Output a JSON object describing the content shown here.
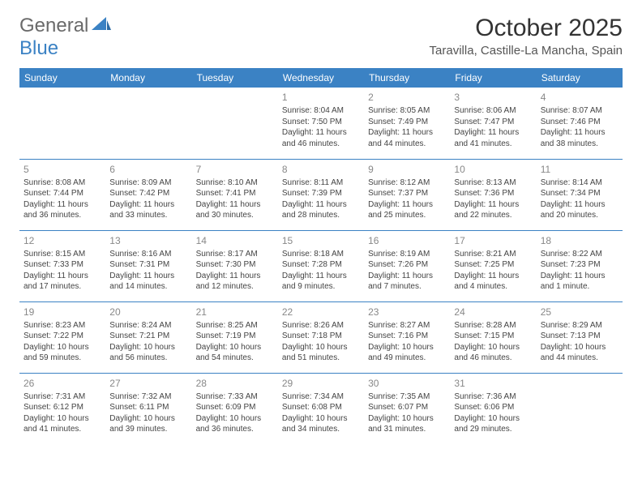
{
  "logo": {
    "text1": "General",
    "text2": "Blue"
  },
  "title": "October 2025",
  "subtitle": "Taravilla, Castille-La Mancha, Spain",
  "colors": {
    "header_bg": "#3b82c4",
    "header_text": "#ffffff",
    "border": "#3b82c4",
    "daynum": "#888888",
    "body_text": "#444444",
    "logo_gray": "#6a6a6a",
    "logo_blue": "#3b82c4"
  },
  "day_headers": [
    "Sunday",
    "Monday",
    "Tuesday",
    "Wednesday",
    "Thursday",
    "Friday",
    "Saturday"
  ],
  "weeks": [
    [
      null,
      null,
      null,
      {
        "n": "1",
        "sr": "Sunrise: 8:04 AM",
        "ss": "Sunset: 7:50 PM",
        "d1": "Daylight: 11 hours",
        "d2": "and 46 minutes."
      },
      {
        "n": "2",
        "sr": "Sunrise: 8:05 AM",
        "ss": "Sunset: 7:49 PM",
        "d1": "Daylight: 11 hours",
        "d2": "and 44 minutes."
      },
      {
        "n": "3",
        "sr": "Sunrise: 8:06 AM",
        "ss": "Sunset: 7:47 PM",
        "d1": "Daylight: 11 hours",
        "d2": "and 41 minutes."
      },
      {
        "n": "4",
        "sr": "Sunrise: 8:07 AM",
        "ss": "Sunset: 7:46 PM",
        "d1": "Daylight: 11 hours",
        "d2": "and 38 minutes."
      }
    ],
    [
      {
        "n": "5",
        "sr": "Sunrise: 8:08 AM",
        "ss": "Sunset: 7:44 PM",
        "d1": "Daylight: 11 hours",
        "d2": "and 36 minutes."
      },
      {
        "n": "6",
        "sr": "Sunrise: 8:09 AM",
        "ss": "Sunset: 7:42 PM",
        "d1": "Daylight: 11 hours",
        "d2": "and 33 minutes."
      },
      {
        "n": "7",
        "sr": "Sunrise: 8:10 AM",
        "ss": "Sunset: 7:41 PM",
        "d1": "Daylight: 11 hours",
        "d2": "and 30 minutes."
      },
      {
        "n": "8",
        "sr": "Sunrise: 8:11 AM",
        "ss": "Sunset: 7:39 PM",
        "d1": "Daylight: 11 hours",
        "d2": "and 28 minutes."
      },
      {
        "n": "9",
        "sr": "Sunrise: 8:12 AM",
        "ss": "Sunset: 7:37 PM",
        "d1": "Daylight: 11 hours",
        "d2": "and 25 minutes."
      },
      {
        "n": "10",
        "sr": "Sunrise: 8:13 AM",
        "ss": "Sunset: 7:36 PM",
        "d1": "Daylight: 11 hours",
        "d2": "and 22 minutes."
      },
      {
        "n": "11",
        "sr": "Sunrise: 8:14 AM",
        "ss": "Sunset: 7:34 PM",
        "d1": "Daylight: 11 hours",
        "d2": "and 20 minutes."
      }
    ],
    [
      {
        "n": "12",
        "sr": "Sunrise: 8:15 AM",
        "ss": "Sunset: 7:33 PM",
        "d1": "Daylight: 11 hours",
        "d2": "and 17 minutes."
      },
      {
        "n": "13",
        "sr": "Sunrise: 8:16 AM",
        "ss": "Sunset: 7:31 PM",
        "d1": "Daylight: 11 hours",
        "d2": "and 14 minutes."
      },
      {
        "n": "14",
        "sr": "Sunrise: 8:17 AM",
        "ss": "Sunset: 7:30 PM",
        "d1": "Daylight: 11 hours",
        "d2": "and 12 minutes."
      },
      {
        "n": "15",
        "sr": "Sunrise: 8:18 AM",
        "ss": "Sunset: 7:28 PM",
        "d1": "Daylight: 11 hours",
        "d2": "and 9 minutes."
      },
      {
        "n": "16",
        "sr": "Sunrise: 8:19 AM",
        "ss": "Sunset: 7:26 PM",
        "d1": "Daylight: 11 hours",
        "d2": "and 7 minutes."
      },
      {
        "n": "17",
        "sr": "Sunrise: 8:21 AM",
        "ss": "Sunset: 7:25 PM",
        "d1": "Daylight: 11 hours",
        "d2": "and 4 minutes."
      },
      {
        "n": "18",
        "sr": "Sunrise: 8:22 AM",
        "ss": "Sunset: 7:23 PM",
        "d1": "Daylight: 11 hours",
        "d2": "and 1 minute."
      }
    ],
    [
      {
        "n": "19",
        "sr": "Sunrise: 8:23 AM",
        "ss": "Sunset: 7:22 PM",
        "d1": "Daylight: 10 hours",
        "d2": "and 59 minutes."
      },
      {
        "n": "20",
        "sr": "Sunrise: 8:24 AM",
        "ss": "Sunset: 7:21 PM",
        "d1": "Daylight: 10 hours",
        "d2": "and 56 minutes."
      },
      {
        "n": "21",
        "sr": "Sunrise: 8:25 AM",
        "ss": "Sunset: 7:19 PM",
        "d1": "Daylight: 10 hours",
        "d2": "and 54 minutes."
      },
      {
        "n": "22",
        "sr": "Sunrise: 8:26 AM",
        "ss": "Sunset: 7:18 PM",
        "d1": "Daylight: 10 hours",
        "d2": "and 51 minutes."
      },
      {
        "n": "23",
        "sr": "Sunrise: 8:27 AM",
        "ss": "Sunset: 7:16 PM",
        "d1": "Daylight: 10 hours",
        "d2": "and 49 minutes."
      },
      {
        "n": "24",
        "sr": "Sunrise: 8:28 AM",
        "ss": "Sunset: 7:15 PM",
        "d1": "Daylight: 10 hours",
        "d2": "and 46 minutes."
      },
      {
        "n": "25",
        "sr": "Sunrise: 8:29 AM",
        "ss": "Sunset: 7:13 PM",
        "d1": "Daylight: 10 hours",
        "d2": "and 44 minutes."
      }
    ],
    [
      {
        "n": "26",
        "sr": "Sunrise: 7:31 AM",
        "ss": "Sunset: 6:12 PM",
        "d1": "Daylight: 10 hours",
        "d2": "and 41 minutes."
      },
      {
        "n": "27",
        "sr": "Sunrise: 7:32 AM",
        "ss": "Sunset: 6:11 PM",
        "d1": "Daylight: 10 hours",
        "d2": "and 39 minutes."
      },
      {
        "n": "28",
        "sr": "Sunrise: 7:33 AM",
        "ss": "Sunset: 6:09 PM",
        "d1": "Daylight: 10 hours",
        "d2": "and 36 minutes."
      },
      {
        "n": "29",
        "sr": "Sunrise: 7:34 AM",
        "ss": "Sunset: 6:08 PM",
        "d1": "Daylight: 10 hours",
        "d2": "and 34 minutes."
      },
      {
        "n": "30",
        "sr": "Sunrise: 7:35 AM",
        "ss": "Sunset: 6:07 PM",
        "d1": "Daylight: 10 hours",
        "d2": "and 31 minutes."
      },
      {
        "n": "31",
        "sr": "Sunrise: 7:36 AM",
        "ss": "Sunset: 6:06 PM",
        "d1": "Daylight: 10 hours",
        "d2": "and 29 minutes."
      },
      null
    ]
  ]
}
